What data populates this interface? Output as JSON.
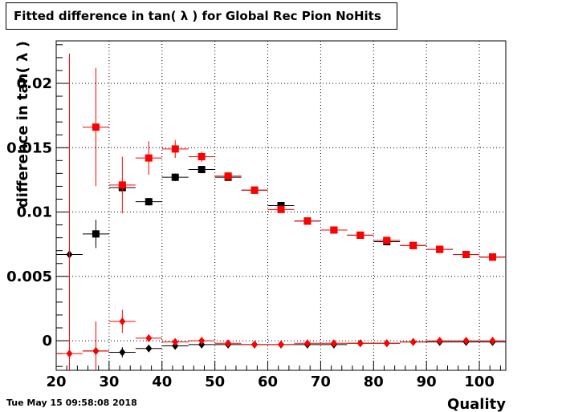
{
  "chart_data": {
    "type": "scatter",
    "title": "Fitted difference in tan( λ ) for Global Rec Pion NoHits",
    "xlabel": "Quality",
    "ylabel": "difference in tan( λ )",
    "xlim": [
      20,
      105
    ],
    "ylim": [
      -0.0023,
      0.0233
    ],
    "x_ticks": [
      20,
      30,
      40,
      50,
      60,
      70,
      80,
      90,
      100
    ],
    "x_tick_labels": [
      "20",
      "30",
      "40",
      "50",
      "60",
      "70",
      "80",
      "90",
      "100"
    ],
    "y_ticks": [
      0,
      0.005,
      0.01,
      0.015,
      0.02
    ],
    "y_tick_labels": [
      "0",
      "0.005",
      "0.01",
      "0.015",
      "0.02"
    ],
    "grid": true,
    "x_bin_halfwidth": 2.5,
    "series": [
      {
        "marker": "square",
        "color": "#000000",
        "x": [
          27.5,
          32.5,
          37.5,
          42.5,
          47.5,
          52.5,
          57.5,
          62.5,
          67.5,
          72.5,
          77.5,
          82.5,
          87.5,
          92.5,
          97.5,
          102.5
        ],
        "y": [
          0.0083,
          0.0119,
          0.0108,
          0.0127,
          0.0133,
          0.0127,
          0.0117,
          0.0105,
          0.0093,
          0.0086,
          0.0082,
          0.0077,
          0.0074,
          0.0071,
          0.0067,
          0.0065
        ],
        "err": [
          0.0011,
          0.0004,
          0.0003,
          0.0003,
          0.0002,
          0.0002,
          0.0002,
          0.0001,
          0.0001,
          0.0001,
          0.0001,
          0.0001,
          0.0001,
          0.0001,
          0.0001,
          0.0001
        ]
      },
      {
        "marker": "square",
        "color": "#ff0000",
        "x": [
          27.5,
          32.5,
          37.5,
          42.5,
          47.5,
          52.5,
          57.5,
          62.5,
          67.5,
          72.5,
          77.5,
          82.5,
          87.5,
          92.5,
          97.5,
          102.5
        ],
        "y": [
          0.0166,
          0.0121,
          0.0142,
          0.0149,
          0.0143,
          0.0128,
          0.0117,
          0.0102,
          0.0093,
          0.0086,
          0.0082,
          0.0078,
          0.0074,
          0.0071,
          0.0067,
          0.0065
        ],
        "err": [
          0.0046,
          0.0022,
          0.0013,
          0.0007,
          0.0004,
          0.0003,
          0.0002,
          0.0002,
          0.0001,
          0.0001,
          0.0001,
          0.0001,
          0.0001,
          0.0001,
          0.0001,
          0.0001
        ]
      },
      {
        "marker": "diamond",
        "color": "#000000",
        "x": [
          22.5,
          27.5,
          32.5,
          37.5,
          42.5,
          47.5,
          52.5,
          57.5,
          62.5,
          67.5,
          72.5,
          77.5,
          82.5,
          87.5,
          92.5,
          97.5,
          102.5
        ],
        "y": [
          0.0067,
          -0.0008,
          -0.0009,
          -0.0006,
          -0.0004,
          -0.0003,
          -0.0003,
          -0.0003,
          -0.0003,
          -0.0003,
          -0.0003,
          -0.0002,
          -0.0002,
          -0.0001,
          -0.0001,
          -0.0001,
          -0.0001
        ],
        "err": [
          0,
          0,
          0.0004,
          0.0002,
          0.0002,
          0.0001,
          0.0001,
          0.0001,
          0.0001,
          0.0001,
          0.0001,
          0.0001,
          0.0001,
          0.0001,
          0.0001,
          0.0001,
          0.0001
        ]
      },
      {
        "marker": "diamond",
        "color": "#ff0000",
        "x": [
          22.5,
          27.5,
          32.5,
          37.5,
          42.5,
          47.5,
          52.5,
          57.5,
          62.5,
          67.5,
          72.5,
          77.5,
          82.5,
          87.5,
          92.5,
          97.5,
          102.5
        ],
        "y": [
          -0.001,
          -0.0008,
          0.0015,
          0.0002,
          -0.0001,
          0.0,
          -0.0002,
          -0.0003,
          -0.0003,
          -0.0002,
          -0.0002,
          -0.0002,
          -0.0002,
          -0.0001,
          0.0,
          0.0,
          0.0
        ],
        "err": [
          0.0233,
          0.0023,
          0.0009,
          0.0003,
          0.0002,
          0.0001,
          0.0001,
          0.0001,
          0.0001,
          0.0001,
          0.0001,
          0.0001,
          0.0001,
          0.0001,
          0.0001,
          0.0001,
          0.0001
        ]
      }
    ]
  },
  "datestamp": "Tue May 15 09:58:08 2018"
}
